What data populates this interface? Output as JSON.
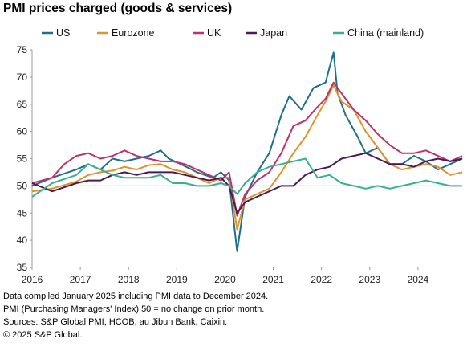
{
  "title": "PMI prices charged (goods & services)",
  "footnotes": [
    "Data compiled January 2025 including PMI data to December 2024.",
    "PMI (Purchasing Managers' Index) 50 = no change on prior month.",
    "Sources: S&P Global PMI, HCOB, au Jibun Bank, Caixin.",
    "© 2025 S&P Global."
  ],
  "chart_data": {
    "type": "line",
    "title": "PMI prices charged (goods & services)",
    "xlabel": "",
    "ylabel": "",
    "x_ticks": [
      "2016",
      "2017",
      "2018",
      "2019",
      "2020",
      "2021",
      "2022",
      "2023",
      "2024"
    ],
    "y_ticks": [
      35,
      40,
      45,
      50,
      55,
      60,
      65,
      70,
      75
    ],
    "ylim": [
      35,
      75
    ],
    "x_range": [
      "2016-01",
      "2024-12"
    ],
    "reference_line": 50,
    "grid": false,
    "legend_position": "top",
    "series": [
      {
        "name": "US",
        "color": "#1f6f8b",
        "points": [
          [
            "2016-01",
            50.0
          ],
          [
            "2016-06",
            51.5
          ],
          [
            "2016-12",
            53.0
          ],
          [
            "2017-03",
            54.0
          ],
          [
            "2017-06",
            53.0
          ],
          [
            "2017-09",
            55.0
          ],
          [
            "2017-12",
            54.5
          ],
          [
            "2018-03",
            55.0
          ],
          [
            "2018-06",
            55.5
          ],
          [
            "2018-09",
            56.5
          ],
          [
            "2018-11",
            55.0
          ],
          [
            "2019-02",
            54.0
          ],
          [
            "2019-06",
            52.5
          ],
          [
            "2019-10",
            51.5
          ],
          [
            "2019-12",
            52.5
          ],
          [
            "2020-02",
            51.0
          ],
          [
            "2020-04",
            38.0
          ],
          [
            "2020-06",
            48.0
          ],
          [
            "2020-09",
            52.5
          ],
          [
            "2020-12",
            56.0
          ],
          [
            "2021-03",
            63.0
          ],
          [
            "2021-05",
            66.5
          ],
          [
            "2021-08",
            64.0
          ],
          [
            "2021-11",
            68.0
          ],
          [
            "2022-02",
            69.0
          ],
          [
            "2022-04",
            74.5
          ],
          [
            "2022-05",
            67.0
          ],
          [
            "2022-07",
            63.0
          ],
          [
            "2022-10",
            59.0
          ],
          [
            "2022-12",
            56.0
          ],
          [
            "2023-03",
            57.0
          ],
          [
            "2023-06",
            54.0
          ],
          [
            "2023-09",
            54.0
          ],
          [
            "2023-12",
            55.5
          ],
          [
            "2024-03",
            54.5
          ],
          [
            "2024-06",
            53.0
          ],
          [
            "2024-09",
            54.0
          ],
          [
            "2024-12",
            55.0
          ]
        ]
      },
      {
        "name": "Eurozone",
        "color": "#e0922b",
        "points": [
          [
            "2016-01",
            49.0
          ],
          [
            "2016-06",
            49.5
          ],
          [
            "2016-12",
            50.8
          ],
          [
            "2017-03",
            52.0
          ],
          [
            "2017-06",
            52.5
          ],
          [
            "2017-09",
            52.8
          ],
          [
            "2017-12",
            53.5
          ],
          [
            "2018-03",
            53.0
          ],
          [
            "2018-06",
            53.8
          ],
          [
            "2018-09",
            54.0
          ],
          [
            "2018-12",
            53.0
          ],
          [
            "2019-03",
            52.5
          ],
          [
            "2019-06",
            51.5
          ],
          [
            "2019-09",
            50.5
          ],
          [
            "2019-12",
            51.5
          ],
          [
            "2020-02",
            51.5
          ],
          [
            "2020-04",
            42.0
          ],
          [
            "2020-06",
            47.5
          ],
          [
            "2020-09",
            48.5
          ],
          [
            "2020-12",
            49.5
          ],
          [
            "2021-03",
            52.5
          ],
          [
            "2021-06",
            56.0
          ],
          [
            "2021-09",
            59.0
          ],
          [
            "2021-12",
            63.0
          ],
          [
            "2022-02",
            65.5
          ],
          [
            "2022-04",
            68.5
          ],
          [
            "2022-06",
            65.5
          ],
          [
            "2022-09",
            64.0
          ],
          [
            "2022-12",
            60.0
          ],
          [
            "2023-03",
            57.0
          ],
          [
            "2023-06",
            54.0
          ],
          [
            "2023-09",
            53.0
          ],
          [
            "2023-12",
            53.5
          ],
          [
            "2024-03",
            54.0
          ],
          [
            "2024-06",
            53.5
          ],
          [
            "2024-09",
            52.0
          ],
          [
            "2024-12",
            52.5
          ]
        ]
      },
      {
        "name": "UK",
        "color": "#c0306a",
        "points": [
          [
            "2016-01",
            50.5
          ],
          [
            "2016-06",
            51.5
          ],
          [
            "2016-09",
            54.0
          ],
          [
            "2016-12",
            55.5
          ],
          [
            "2017-03",
            56.0
          ],
          [
            "2017-06",
            55.0
          ],
          [
            "2017-09",
            55.5
          ],
          [
            "2017-12",
            56.5
          ],
          [
            "2018-03",
            55.5
          ],
          [
            "2018-06",
            55.0
          ],
          [
            "2018-09",
            54.5
          ],
          [
            "2018-12",
            54.5
          ],
          [
            "2019-03",
            54.0
          ],
          [
            "2019-06",
            53.0
          ],
          [
            "2019-09",
            52.0
          ],
          [
            "2019-12",
            51.0
          ],
          [
            "2020-02",
            52.5
          ],
          [
            "2020-04",
            44.5
          ],
          [
            "2020-06",
            48.5
          ],
          [
            "2020-09",
            51.0
          ],
          [
            "2020-12",
            52.5
          ],
          [
            "2021-03",
            56.0
          ],
          [
            "2021-06",
            61.0
          ],
          [
            "2021-09",
            62.0
          ],
          [
            "2021-12",
            64.5
          ],
          [
            "2022-02",
            66.0
          ],
          [
            "2022-04",
            69.0
          ],
          [
            "2022-06",
            67.0
          ],
          [
            "2022-09",
            64.0
          ],
          [
            "2022-12",
            62.0
          ],
          [
            "2023-03",
            59.5
          ],
          [
            "2023-06",
            57.5
          ],
          [
            "2023-09",
            56.0
          ],
          [
            "2023-12",
            56.0
          ],
          [
            "2024-03",
            56.5
          ],
          [
            "2024-06",
            55.5
          ],
          [
            "2024-09",
            54.5
          ],
          [
            "2024-12",
            55.5
          ]
        ]
      },
      {
        "name": "Japan",
        "color": "#4b1a55",
        "points": [
          [
            "2016-01",
            50.5
          ],
          [
            "2016-06",
            49.0
          ],
          [
            "2016-12",
            50.5
          ],
          [
            "2017-03",
            51.0
          ],
          [
            "2017-06",
            51.0
          ],
          [
            "2017-09",
            52.0
          ],
          [
            "2017-12",
            52.5
          ],
          [
            "2018-03",
            52.0
          ],
          [
            "2018-06",
            52.5
          ],
          [
            "2018-09",
            52.5
          ],
          [
            "2018-12",
            52.5
          ],
          [
            "2019-03",
            52.0
          ],
          [
            "2019-06",
            51.5
          ],
          [
            "2019-09",
            51.0
          ],
          [
            "2019-12",
            51.5
          ],
          [
            "2020-02",
            50.0
          ],
          [
            "2020-04",
            45.0
          ],
          [
            "2020-06",
            47.0
          ],
          [
            "2020-09",
            48.0
          ],
          [
            "2020-12",
            49.0
          ],
          [
            "2021-03",
            50.0
          ],
          [
            "2021-06",
            50.0
          ],
          [
            "2021-09",
            52.0
          ],
          [
            "2021-12",
            53.0
          ],
          [
            "2022-03",
            53.5
          ],
          [
            "2022-06",
            55.0
          ],
          [
            "2022-09",
            55.5
          ],
          [
            "2022-12",
            56.0
          ],
          [
            "2023-03",
            55.0
          ],
          [
            "2023-06",
            54.0
          ],
          [
            "2023-09",
            54.0
          ],
          [
            "2023-12",
            53.5
          ],
          [
            "2024-03",
            54.5
          ],
          [
            "2024-06",
            55.0
          ],
          [
            "2024-09",
            54.5
          ],
          [
            "2024-12",
            55.0
          ]
        ]
      },
      {
        "name": "China (mainland)",
        "color": "#3aaf8f",
        "points": [
          [
            "2016-01",
            48.0
          ],
          [
            "2016-06",
            50.5
          ],
          [
            "2016-12",
            52.0
          ],
          [
            "2017-03",
            54.0
          ],
          [
            "2017-06",
            53.0
          ],
          [
            "2017-09",
            52.0
          ],
          [
            "2017-12",
            51.5
          ],
          [
            "2018-03",
            51.5
          ],
          [
            "2018-06",
            51.5
          ],
          [
            "2018-09",
            52.0
          ],
          [
            "2018-12",
            50.5
          ],
          [
            "2019-03",
            50.5
          ],
          [
            "2019-06",
            50.0
          ],
          [
            "2019-09",
            50.0
          ],
          [
            "2019-12",
            50.5
          ],
          [
            "2020-02",
            50.0
          ],
          [
            "2020-04",
            48.5
          ],
          [
            "2020-06",
            50.5
          ],
          [
            "2020-09",
            52.5
          ],
          [
            "2020-12",
            53.5
          ],
          [
            "2021-03",
            54.0
          ],
          [
            "2021-06",
            54.5
          ],
          [
            "2021-09",
            55.0
          ],
          [
            "2021-12",
            51.5
          ],
          [
            "2022-03",
            52.0
          ],
          [
            "2022-06",
            50.5
          ],
          [
            "2022-09",
            50.0
          ],
          [
            "2022-12",
            49.5
          ],
          [
            "2023-03",
            50.0
          ],
          [
            "2023-06",
            49.5
          ],
          [
            "2023-09",
            50.0
          ],
          [
            "2023-12",
            50.5
          ],
          [
            "2024-03",
            51.0
          ],
          [
            "2024-06",
            50.5
          ],
          [
            "2024-09",
            50.0
          ],
          [
            "2024-12",
            50.0
          ]
        ]
      }
    ]
  }
}
